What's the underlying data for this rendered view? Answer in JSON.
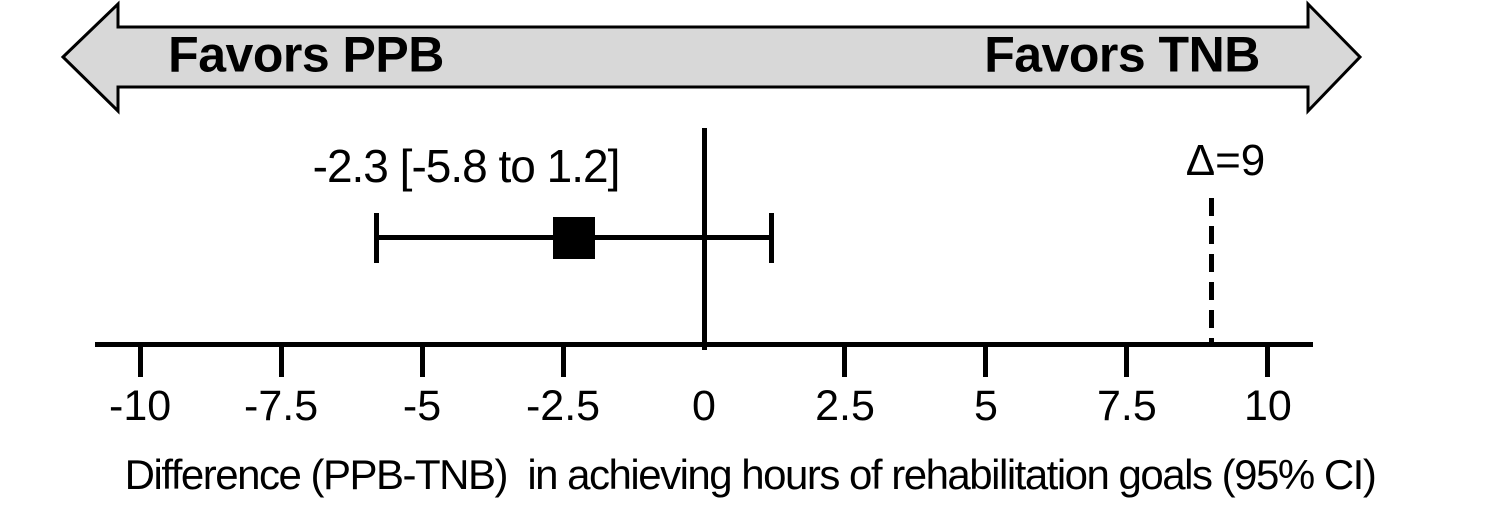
{
  "chart_data": {
    "type": "forest",
    "estimate": -2.3,
    "ci_low": -5.8,
    "ci_high": 1.2,
    "estimate_label": "-2.3 [-5.8 to 1.2]",
    "reference_value": 0,
    "delta_value": 9,
    "delta_label": "Δ=9",
    "favors_left": "Favors PPB",
    "favors_right": "Favors TNB",
    "xlabel": "Difference (PPB-TNB)  in achieving hours of rehabilitation goals (95% CI)",
    "ticks": [
      -10,
      -7.5,
      -5,
      -2.5,
      0,
      2.5,
      5,
      7.5,
      10
    ],
    "tick_labels": [
      "-10",
      "-7.5",
      "-5",
      "-2.5",
      "0",
      "2.5",
      "5",
      "7.5",
      "10"
    ],
    "xlim": [
      -10.8,
      10.8
    ],
    "legend_position": "none",
    "grid": false,
    "colors": {
      "arrow_fill": "#d8d8d8",
      "arrow_stroke": "#000000",
      "ink": "#000000"
    }
  }
}
